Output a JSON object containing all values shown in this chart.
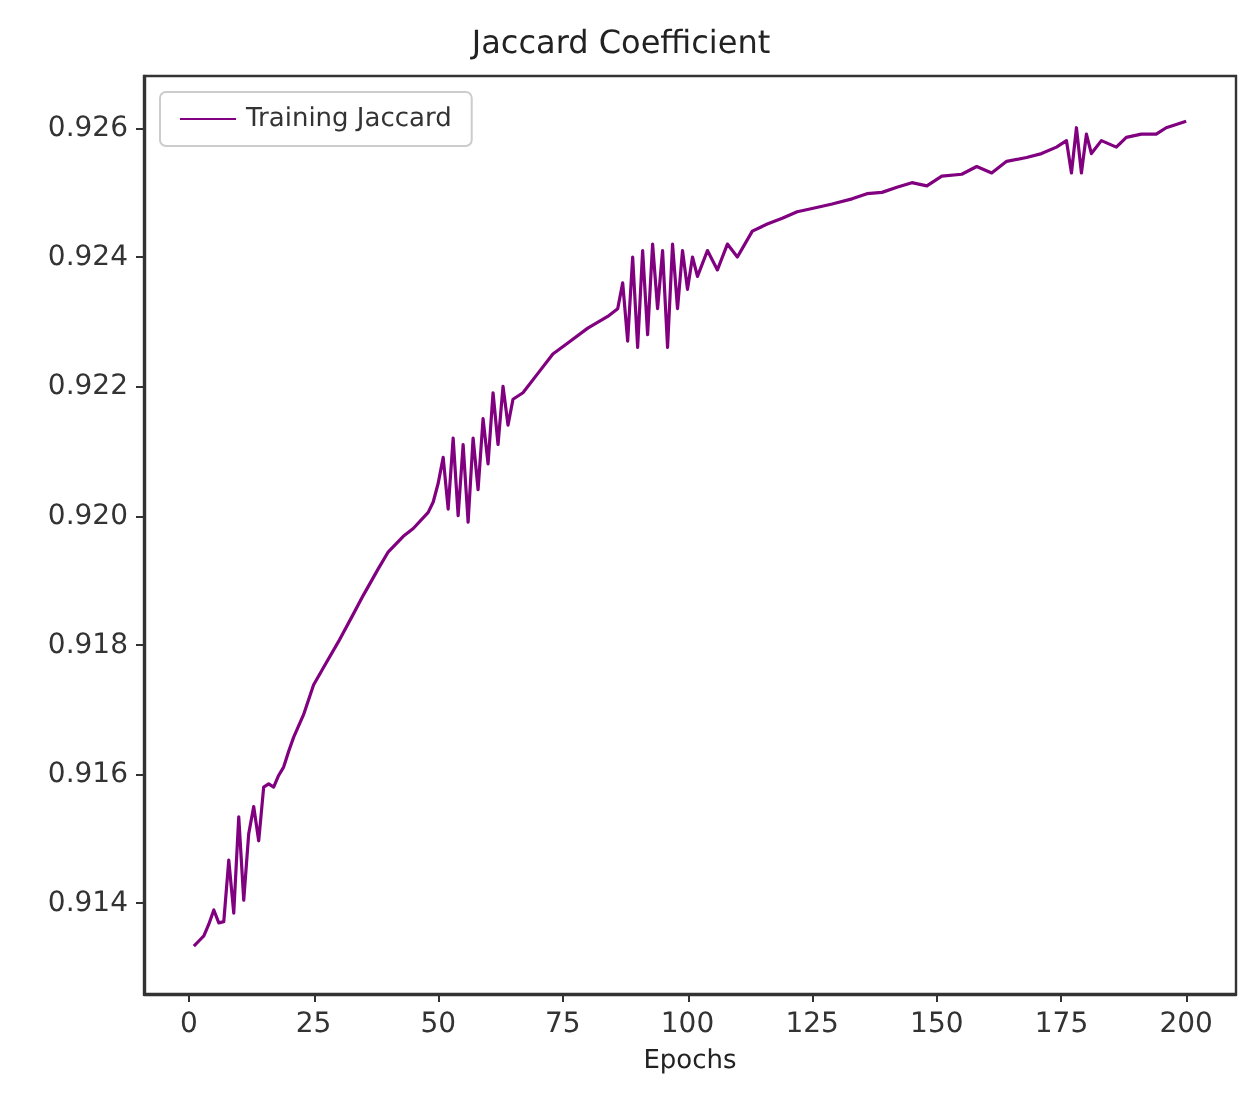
{
  "chart_data": {
    "type": "line",
    "title": "Jaccard Coefficient",
    "xlabel": "Epochs",
    "xlim": [
      -9,
      210
    ],
    "xticks": [
      0,
      25,
      50,
      75,
      100,
      125,
      150,
      175,
      200
    ],
    "ylim": [
      0.9126,
      0.9268
    ],
    "yticks": [
      0.914,
      0.916,
      0.918,
      {
        "value": 0.92,
        "label": "0.920"
      },
      0.922,
      0.924,
      0.926
    ],
    "grid": false,
    "legend": "top left",
    "marker": "none",
    "line_style": "solid",
    "series": [
      {
        "name": "Training Jaccard",
        "color": "#800080",
        "x": [
          1,
          2,
          3,
          4,
          5,
          6,
          7,
          8,
          9,
          10,
          11,
          12,
          13,
          14,
          15,
          16,
          17,
          18,
          19,
          20,
          21,
          23,
          25,
          27,
          30,
          33,
          35,
          38,
          40,
          43,
          45,
          48,
          49,
          50,
          51,
          52,
          53,
          54,
          55,
          56,
          57,
          58,
          59,
          60,
          61,
          62,
          63,
          64,
          65,
          67,
          70,
          73,
          76,
          80,
          84,
          86,
          87,
          88,
          89,
          90,
          91,
          92,
          93,
          94,
          95,
          96,
          97,
          98,
          99,
          100,
          101,
          102,
          104,
          106,
          108,
          110,
          113,
          116,
          119,
          122,
          125,
          129,
          133,
          136,
          139,
          142,
          145,
          148,
          151,
          155,
          158,
          161,
          164,
          168,
          171,
          174,
          176,
          177,
          178,
          179,
          180,
          181,
          183,
          186,
          188,
          191,
          194,
          196,
          198,
          200
        ],
        "values": [
          0.91334,
          0.91342,
          0.9135,
          0.91368,
          0.9139,
          0.9137,
          0.91372,
          0.91467,
          0.91385,
          0.91534,
          0.91405,
          0.91508,
          0.9155,
          0.91497,
          0.9158,
          0.91585,
          0.9158,
          0.91598,
          0.91611,
          0.91635,
          0.91657,
          0.91692,
          0.91738,
          0.91765,
          0.91805,
          0.91848,
          0.91877,
          0.91918,
          0.91944,
          0.91968,
          0.9198,
          0.92005,
          0.92021,
          0.9205,
          0.9209,
          0.9201,
          0.9212,
          0.92,
          0.9211,
          0.9199,
          0.9212,
          0.9204,
          0.9215,
          0.9208,
          0.9219,
          0.9211,
          0.922,
          0.9214,
          0.9218,
          0.9219,
          0.9222,
          0.9225,
          0.92267,
          0.9229,
          0.92308,
          0.9232,
          0.9236,
          0.9227,
          0.924,
          0.9226,
          0.9241,
          0.9228,
          0.9242,
          0.9232,
          0.9241,
          0.9226,
          0.9242,
          0.9232,
          0.9241,
          0.9235,
          0.924,
          0.9237,
          0.9241,
          0.9238,
          0.9242,
          0.924,
          0.9244,
          0.92451,
          0.9246,
          0.9247,
          0.92475,
          0.92482,
          0.9249,
          0.92498,
          0.925,
          0.92508,
          0.92515,
          0.9251,
          0.92525,
          0.92528,
          0.9254,
          0.9253,
          0.92548,
          0.92554,
          0.9256,
          0.9257,
          0.9258,
          0.9253,
          0.926,
          0.9253,
          0.9259,
          0.9256,
          0.9258,
          0.9257,
          0.92585,
          0.9259,
          0.9259,
          0.926,
          0.92605,
          0.9261
        ]
      }
    ]
  }
}
